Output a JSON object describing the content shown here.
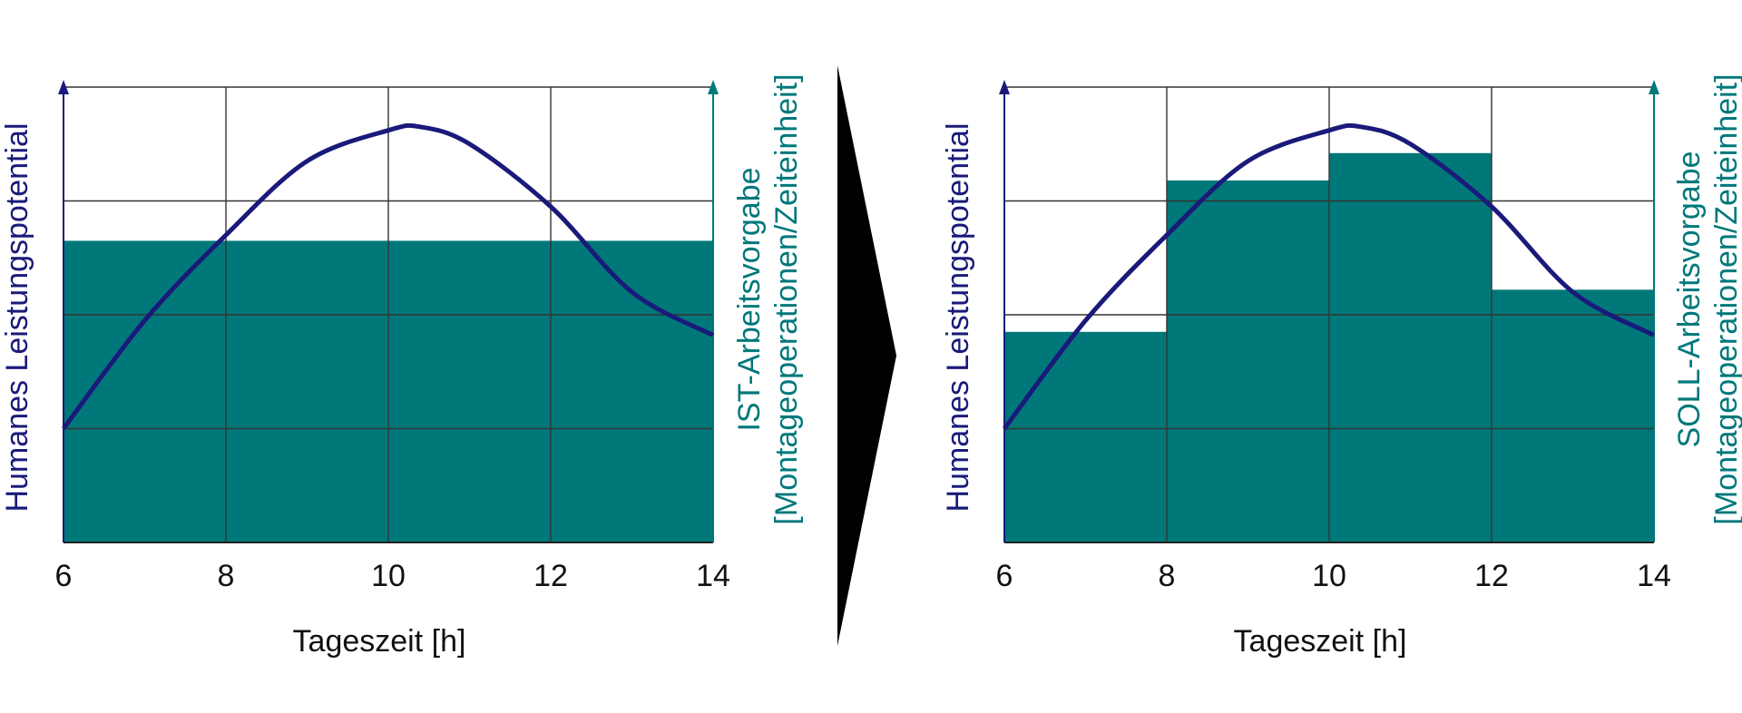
{
  "colors": {
    "curve": "#1a1a7a",
    "bar": "#00787a",
    "grid": "#333333",
    "left_axis": "#1a1a7a",
    "right_axis": "#00787a",
    "arrow": "#000000"
  },
  "chart_data": [
    {
      "type": "bar",
      "xlabel": "Tageszeit [h]",
      "ylabel_left": "Humanes Leistungspotential",
      "ylabel_right_1": "IST-Arbeitsvorgabe",
      "ylabel_right_2": "[Montageoperationen/Zeiteinheit]",
      "xlim": [
        6,
        14
      ],
      "xticks": [
        "6",
        "8",
        "10",
        "12",
        "14"
      ],
      "ylim": [
        0,
        4
      ],
      "grid": true,
      "bars": [
        {
          "x_start": 6,
          "x_end": 14,
          "value": 2.65
        }
      ],
      "curve": {
        "name": "Humanes Leistungspotential",
        "x": [
          6,
          7,
          8,
          9,
          10,
          10.4,
          11,
          12,
          13,
          14
        ],
        "y": [
          1.0,
          1.95,
          2.7,
          3.35,
          3.62,
          3.65,
          3.5,
          2.95,
          2.2,
          1.82
        ]
      }
    },
    {
      "type": "bar",
      "xlabel": "Tageszeit [h]",
      "ylabel_left": "Humanes Leistungspotential",
      "ylabel_right_1": "SOLL-Arbeitsvorgabe",
      "ylabel_right_2": "[Montageoperationen/Zeiteinheit]",
      "xlim": [
        6,
        14
      ],
      "xticks": [
        "6",
        "8",
        "10",
        "12",
        "14"
      ],
      "ylim": [
        0,
        4
      ],
      "grid": true,
      "bars": [
        {
          "x_start": 6,
          "x_end": 8,
          "value": 1.85
        },
        {
          "x_start": 8,
          "x_end": 10,
          "value": 3.18
        },
        {
          "x_start": 10,
          "x_end": 12,
          "value": 3.42
        },
        {
          "x_start": 12,
          "x_end": 14,
          "value": 2.22
        }
      ],
      "curve": {
        "name": "Humanes Leistungspotential",
        "x": [
          6,
          7,
          8,
          9,
          10,
          10.4,
          11,
          12,
          13,
          14
        ],
        "y": [
          1.0,
          1.95,
          2.7,
          3.35,
          3.62,
          3.65,
          3.5,
          2.95,
          2.2,
          1.82
        ]
      }
    }
  ]
}
